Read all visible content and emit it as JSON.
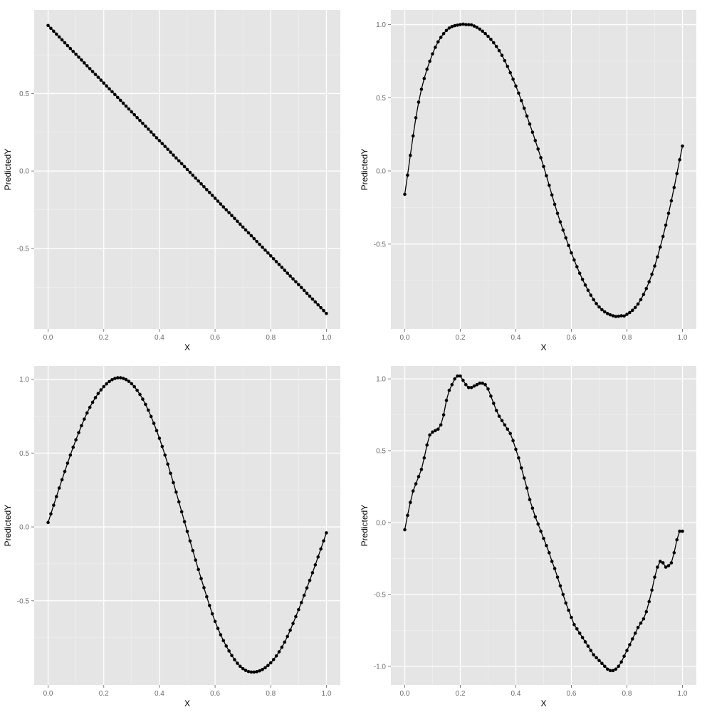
{
  "colors": {
    "panel": "#e5e5e5",
    "grid": "#ffffff",
    "series": "#000000"
  },
  "chart_data": [
    {
      "type": "line",
      "name_key": "top-left",
      "xlabel": "X",
      "ylabel": "PredictedY",
      "xlim": [
        -0.05,
        1.05
      ],
      "ylim": [
        -1.02,
        1.04
      ],
      "xticks": [
        0.0,
        0.2,
        0.4,
        0.6,
        0.8,
        1.0
      ],
      "xtick_labels": [
        "0.0",
        "0.2",
        "0.4",
        "0.6",
        "0.8",
        "1.0"
      ],
      "yticks": [
        -0.5,
        0.0,
        0.5
      ],
      "ytick_labels": [
        "-0.5",
        "0.0",
        "0.5"
      ],
      "grid": true,
      "markers": true,
      "n_points": 101,
      "x": [
        0.0,
        0.2,
        0.4,
        0.6,
        0.8,
        1.0
      ],
      "y": [
        0.94,
        0.56,
        0.19,
        -0.19,
        -0.56,
        -0.92
      ],
      "curve": "linear"
    },
    {
      "type": "line",
      "name_key": "top-right",
      "xlabel": "X",
      "ylabel": "PredictedY",
      "xlim": [
        -0.05,
        1.05
      ],
      "ylim": [
        -1.08,
        1.1
      ],
      "xticks": [
        0.0,
        0.2,
        0.4,
        0.6,
        0.8,
        1.0
      ],
      "xtick_labels": [
        "0.0",
        "0.2",
        "0.4",
        "0.6",
        "0.8",
        "1.0"
      ],
      "yticks": [
        -0.5,
        0.0,
        0.5,
        1.0
      ],
      "ytick_labels": [
        "-0.5",
        "0.0",
        "0.5",
        "1.0"
      ],
      "grid": true,
      "markers": true,
      "n_points": 101,
      "x": [
        0.0,
        0.05,
        0.1,
        0.15,
        0.2,
        0.22,
        0.25,
        0.3,
        0.35,
        0.4,
        0.45,
        0.5,
        0.55,
        0.6,
        0.65,
        0.7,
        0.75,
        0.78,
        0.8,
        0.85,
        0.9,
        0.95,
        1.0
      ],
      "y": [
        -0.16,
        0.47,
        0.8,
        0.96,
        1.0,
        1.0,
        0.99,
        0.92,
        0.79,
        0.58,
        0.32,
        0.03,
        -0.29,
        -0.56,
        -0.78,
        -0.93,
        -0.99,
        -0.99,
        -0.98,
        -0.88,
        -0.65,
        -0.29,
        0.17
      ],
      "curve": "smooth"
    },
    {
      "type": "line",
      "name_key": "bottom-left",
      "xlabel": "X",
      "ylabel": "PredictedY",
      "xlim": [
        -0.05,
        1.05
      ],
      "ylim": [
        -1.07,
        1.09
      ],
      "xticks": [
        0.0,
        0.2,
        0.4,
        0.6,
        0.8,
        1.0
      ],
      "xtick_labels": [
        "0.0",
        "0.2",
        "0.4",
        "0.6",
        "0.8",
        "1.0"
      ],
      "yticks": [
        -0.5,
        0.0,
        0.5,
        1.0
      ],
      "ytick_labels": [
        "-0.5",
        "0.0",
        "0.5",
        "1.0"
      ],
      "grid": true,
      "markers": true,
      "n_points": 101,
      "x": [
        0.0,
        0.05,
        0.1,
        0.15,
        0.2,
        0.25,
        0.3,
        0.35,
        0.4,
        0.45,
        0.5,
        0.55,
        0.6,
        0.65,
        0.7,
        0.75,
        0.8,
        0.85,
        0.9,
        0.95,
        1.0
      ],
      "y": [
        0.03,
        0.32,
        0.59,
        0.81,
        0.95,
        1.01,
        0.97,
        0.83,
        0.6,
        0.3,
        -0.03,
        -0.35,
        -0.64,
        -0.84,
        -0.96,
        -0.98,
        -0.92,
        -0.78,
        -0.56,
        -0.31,
        -0.04
      ],
      "curve": "smooth"
    },
    {
      "type": "line",
      "name_key": "bottom-right",
      "xlabel": "X",
      "ylabel": "PredictedY",
      "xlim": [
        -0.05,
        1.05
      ],
      "ylim": [
        -1.13,
        1.09
      ],
      "xticks": [
        0.0,
        0.2,
        0.4,
        0.6,
        0.8,
        1.0
      ],
      "xtick_labels": [
        "0.0",
        "0.2",
        "0.4",
        "0.6",
        "0.8",
        "1.0"
      ],
      "yticks": [
        -1.0,
        -0.5,
        0.0,
        0.5,
        1.0
      ],
      "ytick_labels": [
        "-1.0",
        "-0.5",
        "0.0",
        "0.5",
        "1.0"
      ],
      "grid": true,
      "markers": true,
      "n_points": 101,
      "x": [
        0.0,
        0.01,
        0.02,
        0.03,
        0.04,
        0.05,
        0.06,
        0.07,
        0.08,
        0.09,
        0.1,
        0.11,
        0.12,
        0.13,
        0.14,
        0.15,
        0.16,
        0.17,
        0.18,
        0.19,
        0.2,
        0.21,
        0.22,
        0.23,
        0.24,
        0.25,
        0.26,
        0.27,
        0.28,
        0.29,
        0.3,
        0.31,
        0.32,
        0.33,
        0.34,
        0.35,
        0.36,
        0.37,
        0.38,
        0.39,
        0.4,
        0.41,
        0.42,
        0.43,
        0.44,
        0.45,
        0.46,
        0.47,
        0.48,
        0.49,
        0.5,
        0.51,
        0.52,
        0.53,
        0.54,
        0.55,
        0.56,
        0.57,
        0.58,
        0.59,
        0.6,
        0.61,
        0.62,
        0.63,
        0.64,
        0.65,
        0.66,
        0.67,
        0.68,
        0.69,
        0.7,
        0.71,
        0.72,
        0.73,
        0.74,
        0.75,
        0.76,
        0.77,
        0.78,
        0.79,
        0.8,
        0.81,
        0.82,
        0.83,
        0.84,
        0.85,
        0.86,
        0.87,
        0.88,
        0.89,
        0.9,
        0.91,
        0.92,
        0.93,
        0.94,
        0.95,
        0.96,
        0.97,
        0.98,
        0.99,
        1.0
      ],
      "y": [
        -0.05,
        0.05,
        0.14,
        0.22,
        0.27,
        0.32,
        0.37,
        0.45,
        0.54,
        0.61,
        0.63,
        0.64,
        0.65,
        0.68,
        0.75,
        0.85,
        0.92,
        0.96,
        1.0,
        1.02,
        1.02,
        0.99,
        0.96,
        0.94,
        0.94,
        0.95,
        0.96,
        0.97,
        0.97,
        0.96,
        0.93,
        0.88,
        0.83,
        0.78,
        0.74,
        0.71,
        0.68,
        0.65,
        0.62,
        0.57,
        0.51,
        0.45,
        0.38,
        0.31,
        0.24,
        0.16,
        0.1,
        0.04,
        -0.01,
        -0.06,
        -0.11,
        -0.16,
        -0.21,
        -0.27,
        -0.32,
        -0.38,
        -0.44,
        -0.5,
        -0.56,
        -0.61,
        -0.66,
        -0.71,
        -0.74,
        -0.77,
        -0.8,
        -0.83,
        -0.86,
        -0.89,
        -0.92,
        -0.94,
        -0.96,
        -0.98,
        -1.0,
        -1.02,
        -1.03,
        -1.03,
        -1.02,
        -1.0,
        -0.97,
        -0.93,
        -0.89,
        -0.85,
        -0.81,
        -0.77,
        -0.73,
        -0.7,
        -0.67,
        -0.62,
        -0.55,
        -0.47,
        -0.38,
        -0.31,
        -0.27,
        -0.28,
        -0.31,
        -0.3,
        -0.28,
        -0.21,
        -0.12,
        -0.06,
        -0.06
      ],
      "curve": "raw"
    }
  ]
}
